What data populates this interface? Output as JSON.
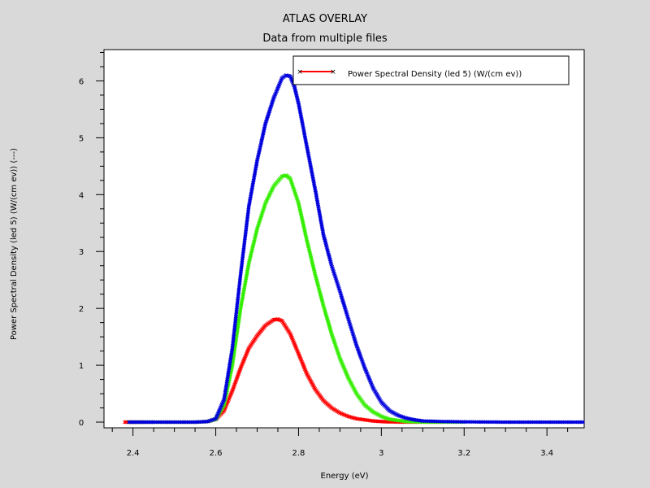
{
  "chart_data": {
    "type": "line",
    "title": "ATLAS OVERLAY",
    "subtitle": "Data from multiple files",
    "xlabel": "Energy (eV)",
    "ylabel": "Power Spectral Density (led 5) (W/(cm ev)) (---)",
    "xlim": [
      2.33,
      3.49
    ],
    "ylim": [
      -0.1,
      6.55
    ],
    "x_ticks": [
      2.4,
      2.6,
      2.8,
      3,
      3.2,
      3.4
    ],
    "x_tick_labels": [
      "2.4",
      "2.6",
      "2.8",
      "3",
      "3.2",
      "3.4"
    ],
    "y_ticks": [
      0,
      1,
      2,
      3,
      4,
      5,
      6
    ],
    "y_tick_labels": [
      "0",
      "1",
      "2",
      "3",
      "4",
      "5",
      "6"
    ],
    "grid": false,
    "legend": {
      "position": "top-right",
      "entries": [
        {
          "label": "Power Spectral Density (led 5) (W/(cm ev))",
          "color": "#ff0000",
          "marker": "x"
        }
      ]
    },
    "series": [
      {
        "name": "red",
        "color": "#ff0000",
        "x": [
          2.38,
          2.4,
          2.45,
          2.5,
          2.55,
          2.58,
          2.6,
          2.62,
          2.64,
          2.66,
          2.68,
          2.7,
          2.72,
          2.74,
          2.75,
          2.76,
          2.78,
          2.8,
          2.82,
          2.84,
          2.86,
          2.88,
          2.9,
          2.92,
          2.94,
          2.96,
          2.98,
          3.0,
          3.02,
          3.05,
          3.1,
          3.15
        ],
        "y": [
          0.0,
          0.0,
          0.0,
          0.0,
          0.0,
          0.01,
          0.05,
          0.2,
          0.55,
          0.95,
          1.3,
          1.52,
          1.7,
          1.8,
          1.81,
          1.78,
          1.55,
          1.2,
          0.85,
          0.58,
          0.38,
          0.25,
          0.16,
          0.1,
          0.06,
          0.04,
          0.02,
          0.01,
          0.005,
          0.0,
          0.0,
          0.0
        ]
      },
      {
        "name": "green",
        "color": "#33ee00",
        "x": [
          2.39,
          2.45,
          2.5,
          2.55,
          2.58,
          2.6,
          2.62,
          2.64,
          2.66,
          2.68,
          2.7,
          2.72,
          2.74,
          2.76,
          2.77,
          2.78,
          2.8,
          2.82,
          2.84,
          2.86,
          2.88,
          2.9,
          2.92,
          2.94,
          2.96,
          2.98,
          3.0,
          3.02,
          3.04,
          3.06,
          3.1,
          3.2
        ],
        "y": [
          0.0,
          0.0,
          0.0,
          0.0,
          0.01,
          0.05,
          0.3,
          1.0,
          2.0,
          2.8,
          3.4,
          3.85,
          4.15,
          4.32,
          4.34,
          4.28,
          3.85,
          3.2,
          2.6,
          2.05,
          1.55,
          1.12,
          0.78,
          0.5,
          0.3,
          0.18,
          0.1,
          0.05,
          0.03,
          0.01,
          0.0,
          0.0
        ]
      },
      {
        "name": "blue",
        "color": "#0000dd",
        "x": [
          2.39,
          2.45,
          2.5,
          2.55,
          2.58,
          2.6,
          2.62,
          2.64,
          2.66,
          2.68,
          2.7,
          2.72,
          2.74,
          2.76,
          2.77,
          2.78,
          2.79,
          2.8,
          2.82,
          2.84,
          2.86,
          2.88,
          2.9,
          2.92,
          2.94,
          2.96,
          2.98,
          3.0,
          3.02,
          3.04,
          3.06,
          3.08,
          3.1,
          3.15,
          3.2,
          3.3,
          3.49
        ],
        "y": [
          0.0,
          0.0,
          0.0,
          0.0,
          0.01,
          0.06,
          0.4,
          1.3,
          2.6,
          3.8,
          4.6,
          5.25,
          5.7,
          6.05,
          6.1,
          6.08,
          5.9,
          5.6,
          4.85,
          4.1,
          3.3,
          2.75,
          2.3,
          1.82,
          1.35,
          0.95,
          0.6,
          0.35,
          0.2,
          0.12,
          0.07,
          0.04,
          0.02,
          0.01,
          0.005,
          0.0,
          0.0
        ]
      }
    ]
  }
}
